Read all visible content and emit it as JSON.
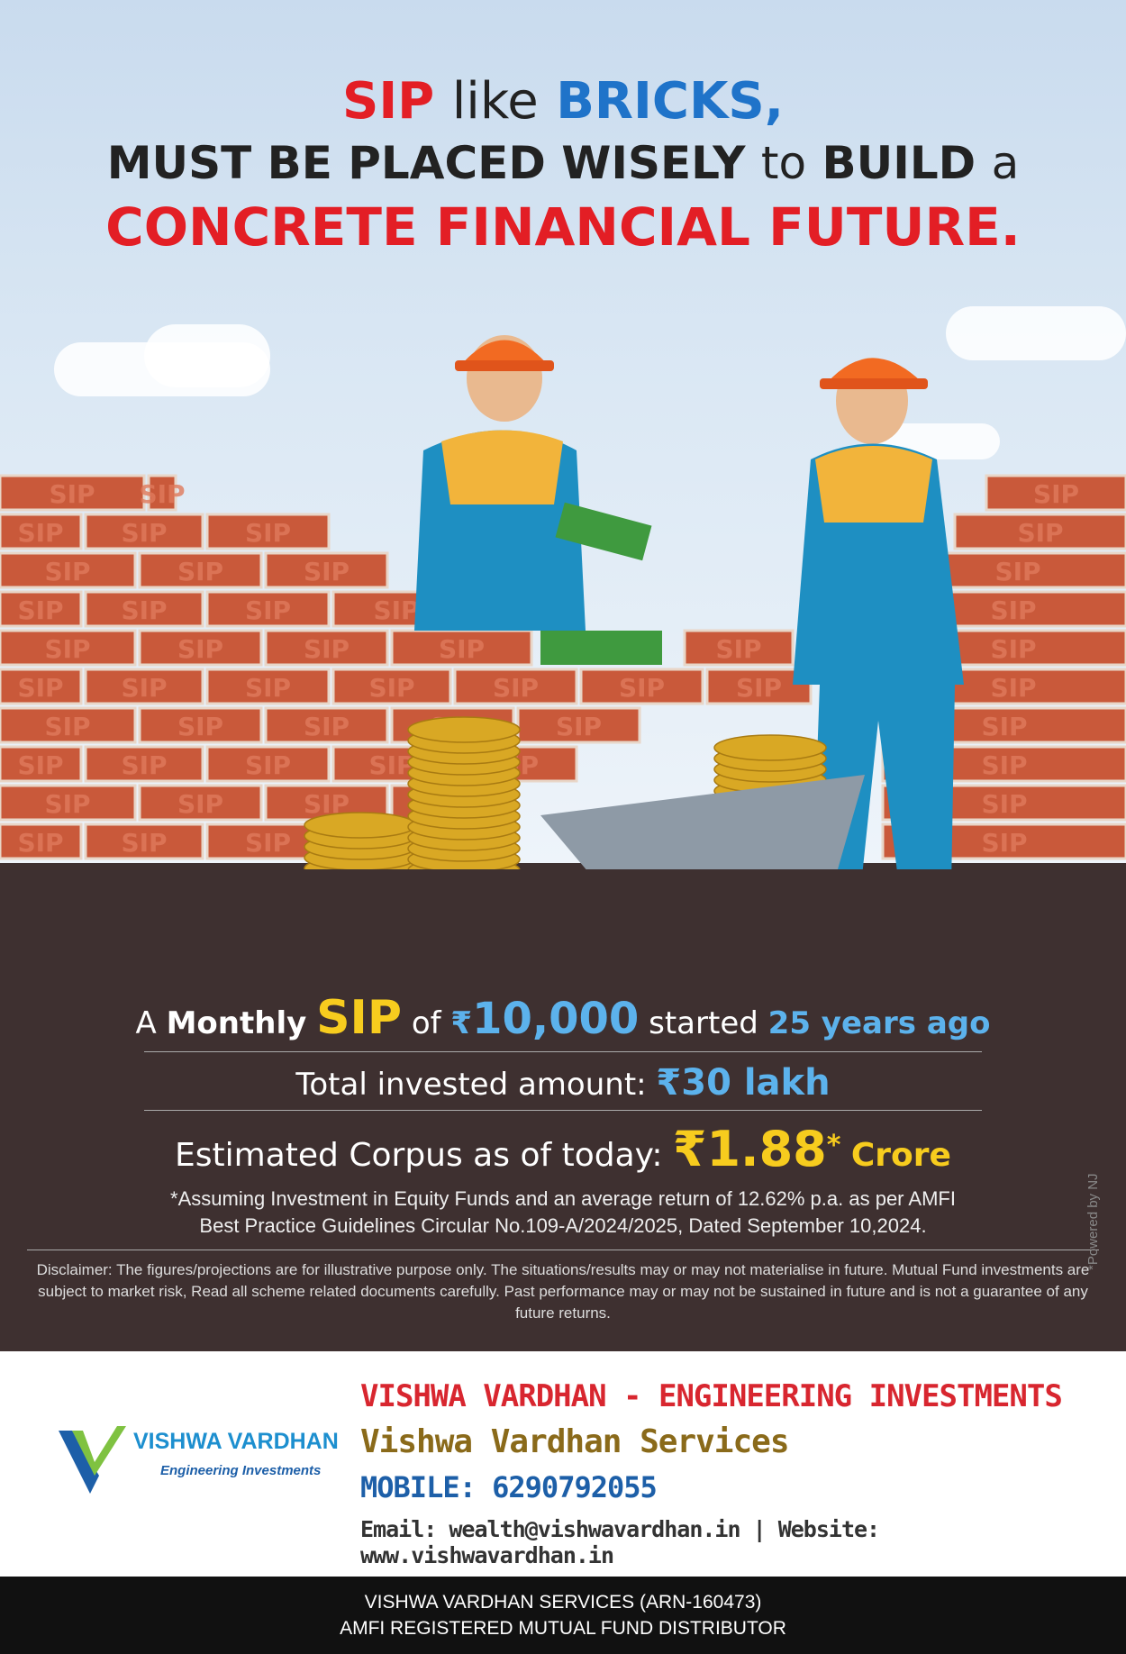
{
  "headline": {
    "l1_a": "SIP",
    "l1_b": "like",
    "l1_c": "BRICKS,",
    "l2_a": "MUST BE PLACED WISELY",
    "l2_b": "to",
    "l2_c": "BUILD",
    "l2_d": "a",
    "l3": "CONCRETE FINANCIAL FUTURE."
  },
  "bricks": {
    "label": "SIP"
  },
  "stats": {
    "r1_a": "A",
    "r1_b": "Monthly",
    "r1_c": "SIP",
    "r1_d": "of",
    "r1_e": "₹",
    "r1_f": "10,000",
    "r1_g": "started",
    "r1_h": "25 years ago",
    "r2_a": "Total invested amount:",
    "r2_b": "₹30 lakh",
    "r3_a": "Estimated Corpus as of today:",
    "r3_b": "₹1.88",
    "r3_c": "*",
    "r3_d": "Crore",
    "assume_1": "*Assuming Investment in Equity Funds and an average return of 12.62% p.a. as per AMFI",
    "assume_2": "Best Practice  Guidelines Circular No.109-A/2024/2025, Dated September 10,2024."
  },
  "disclaimer": "Disclaimer: The figures/projections are for illustrative purpose only. The situations/results may or may not materialise in future. Mutual Fund investments are subject to market risk, Read all scheme related documents carefully. Past performance may or may not be sustained in future and is not a guarantee of any future returns.",
  "powered": "*Powered by NJ",
  "contact": {
    "company": "VISHWA VARDHAN - ENGINEERING INVESTMENTS",
    "services": "Vishwa Vardhan Services",
    "mobile": "MOBILE: 6290792055",
    "email_web": "Email: wealth@vishwavardhan.in | Website: www.vishwavardhan.in"
  },
  "logo": {
    "name": "VISHWA VARDHAN",
    "tagline": "Engineering Investments"
  },
  "footer": {
    "line1": "VISHWA VARDHAN SERVICES (ARN-160473)",
    "line2": "AMFI REGISTERED MUTUAL FUND DISTRIBUTOR"
  },
  "colors": {
    "red": "#e31e25",
    "blue": "#1f73c9",
    "yellow": "#f7cc1e",
    "sky": "#5cb2ec",
    "brick": "#c9593a",
    "ground": "#3e3030"
  }
}
